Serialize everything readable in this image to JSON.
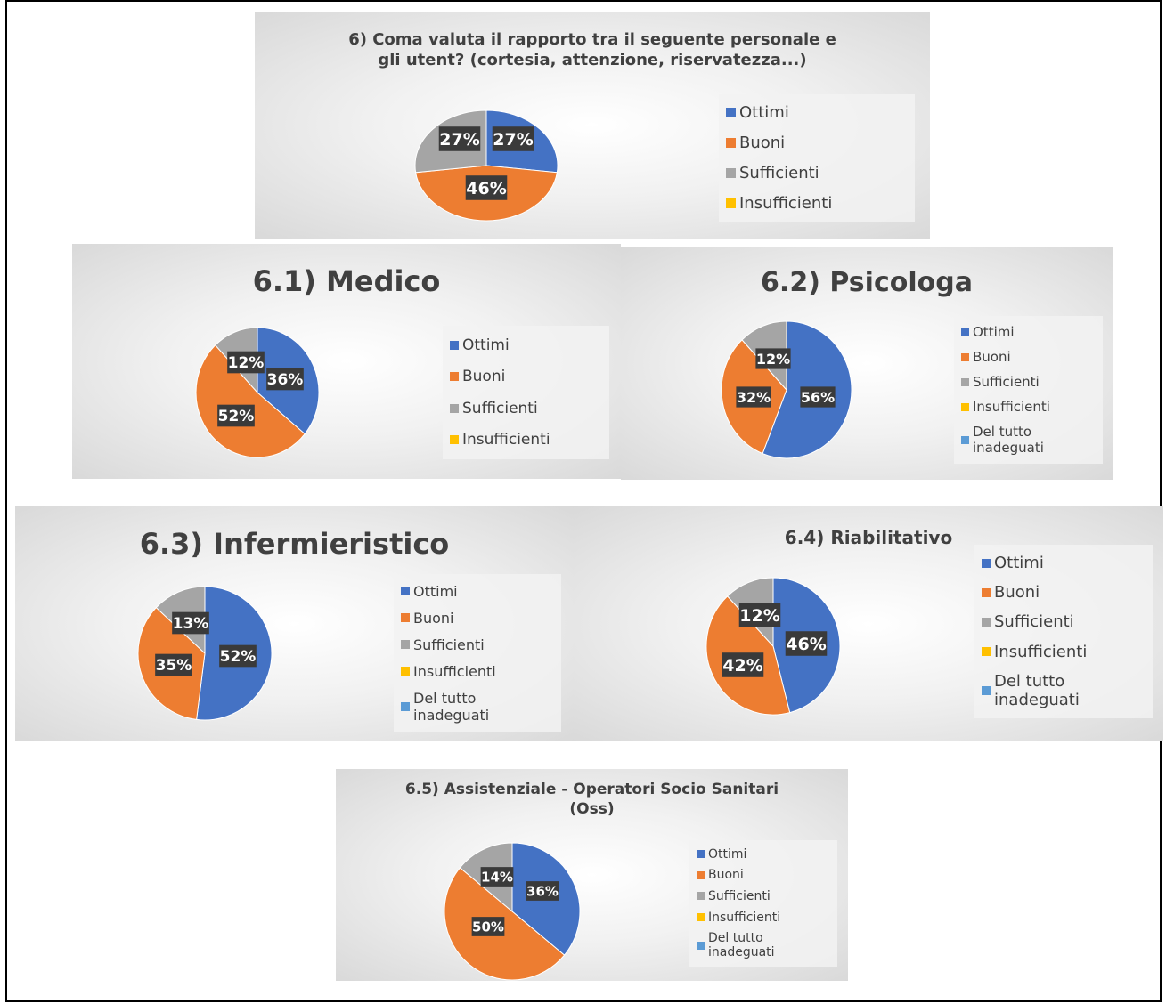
{
  "colors": {
    "Ottimi": "#4472c4",
    "Buoni": "#ed7d31",
    "Sufficienti": "#a5a5a5",
    "Insufficienti": "#ffc000",
    "Del tutto inadeguati": "#5b9bd5"
  },
  "chart_data": [
    {
      "type": "pie",
      "title": "6) Coma valuta il rapporto tra il seguente personale e\ngli utent? (cortesia, attenzione, riservatezza...)",
      "legend": [
        "Ottimi",
        "Buoni",
        "Sufficienti",
        "Insufficienti"
      ],
      "slices": [
        {
          "label": "Ottimi",
          "value": 27,
          "text": "27%"
        },
        {
          "label": "Buoni",
          "value": 46,
          "text": "46%"
        },
        {
          "label": "Sufficienti",
          "value": 27,
          "text": "27%"
        }
      ],
      "legend_position": "right"
    },
    {
      "type": "pie",
      "title": "6.1) Medico",
      "legend": [
        "Ottimi",
        "Buoni",
        "Sufficienti",
        "Insufficienti"
      ],
      "slices": [
        {
          "label": "Ottimi",
          "value": 36,
          "text": "36%"
        },
        {
          "label": "Buoni",
          "value": 52,
          "text": "52%"
        },
        {
          "label": "Sufficienti",
          "value": 12,
          "text": "12%"
        }
      ],
      "legend_position": "right"
    },
    {
      "type": "pie",
      "title": "6.2) Psicologa",
      "legend": [
        "Ottimi",
        "Buoni",
        "Sufficienti",
        "Insufficienti",
        "Del tutto inadeguati"
      ],
      "slices": [
        {
          "label": "Ottimi",
          "value": 56,
          "text": "56%"
        },
        {
          "label": "Buoni",
          "value": 32,
          "text": "32%"
        },
        {
          "label": "Sufficienti",
          "value": 12,
          "text": "12%"
        }
      ],
      "legend_position": "right"
    },
    {
      "type": "pie",
      "title": "6.3) Infermieristico",
      "legend": [
        "Ottimi",
        "Buoni",
        "Sufficienti",
        "Insufficienti",
        "Del tutto inadeguati"
      ],
      "slices": [
        {
          "label": "Ottimi",
          "value": 52,
          "text": "52%"
        },
        {
          "label": "Buoni",
          "value": 35,
          "text": "35%"
        },
        {
          "label": "Sufficienti",
          "value": 13,
          "text": "13%"
        }
      ],
      "legend_position": "right"
    },
    {
      "type": "pie",
      "title": "6.4) Riabilitativo",
      "legend": [
        "Ottimi",
        "Buoni",
        "Sufficienti",
        "Insufficienti",
        "Del tutto inadeguati"
      ],
      "slices": [
        {
          "label": "Ottimi",
          "value": 46,
          "text": "46%"
        },
        {
          "label": "Buoni",
          "value": 42,
          "text": "42%"
        },
        {
          "label": "Sufficienti",
          "value": 12,
          "text": "12%"
        }
      ],
      "legend_position": "right"
    },
    {
      "type": "pie",
      "title": "6.5) Assistenziale - Operatori Socio Sanitari\n(Oss)",
      "legend": [
        "Ottimi",
        "Buoni",
        "Sufficienti",
        "Insufficienti",
        "Del tutto inadeguati"
      ],
      "slices": [
        {
          "label": "Ottimi",
          "value": 36,
          "text": "36%"
        },
        {
          "label": "Buoni",
          "value": 50,
          "text": "50%"
        },
        {
          "label": "Sufficienti",
          "value": 14,
          "text": "14%"
        }
      ],
      "legend_position": "right"
    }
  ]
}
